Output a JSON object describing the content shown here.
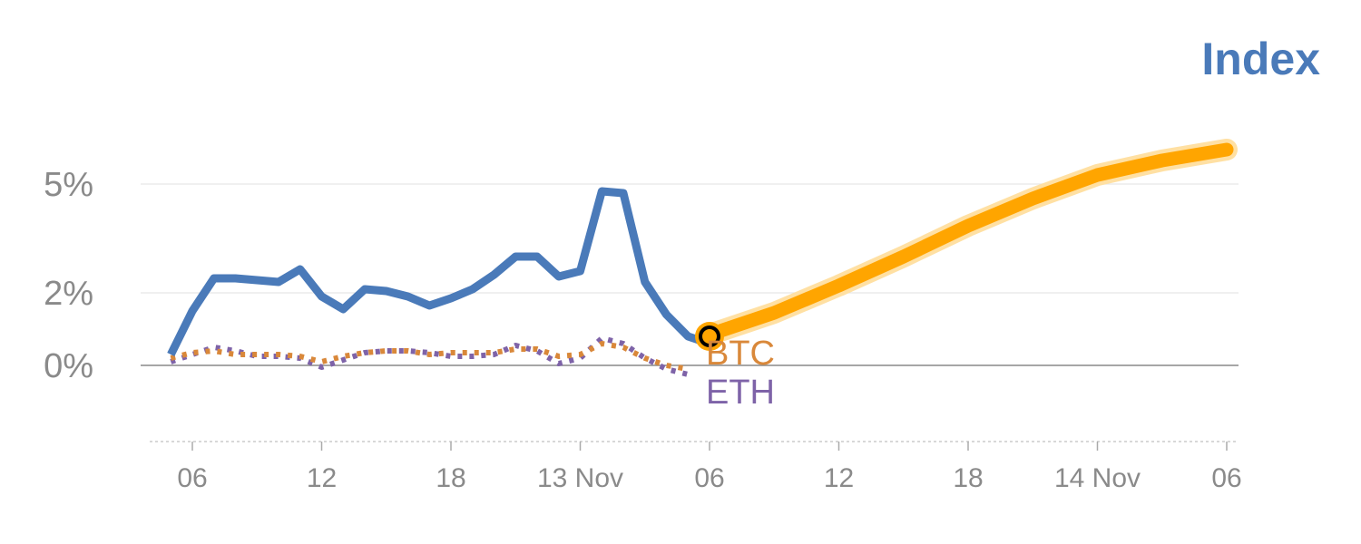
{
  "chart_data": {
    "type": "line",
    "title": "Index",
    "title_color": "#4a7ab9",
    "x_unit": "hours (ticks every 6h, day boundaries labeled)",
    "x_ticks": [
      {
        "x": 0,
        "label": "06"
      },
      {
        "x": 6,
        "label": "12"
      },
      {
        "x": 12,
        "label": "18"
      },
      {
        "x": 18,
        "label": "13 Nov"
      },
      {
        "x": 24,
        "label": "06"
      },
      {
        "x": 30,
        "label": "12"
      },
      {
        "x": 36,
        "label": "18"
      },
      {
        "x": 42,
        "label": "14 Nov"
      },
      {
        "x": 48,
        "label": "06"
      }
    ],
    "y_ticks": [
      {
        "y": 0,
        "label": "0%"
      },
      {
        "y": 2,
        "label": "2%"
      },
      {
        "y": 5,
        "label": "5%"
      }
    ],
    "ylim": [
      -1.8,
      6.5
    ],
    "xlim": [
      -2,
      49
    ],
    "series": [
      {
        "name": "Index",
        "color": "#4a7ab9",
        "style": "solid",
        "x": [
          -1,
          0,
          1,
          2,
          3,
          4,
          5,
          6,
          7,
          8,
          9,
          10,
          11,
          12,
          13,
          14,
          15,
          16,
          17,
          18,
          19,
          20,
          21,
          22,
          23,
          24
        ],
        "y": [
          0.3,
          1.5,
          2.4,
          2.4,
          2.35,
          2.3,
          2.65,
          1.9,
          1.55,
          2.1,
          2.05,
          1.9,
          1.65,
          1.85,
          2.1,
          2.5,
          3.0,
          3.0,
          2.45,
          2.6,
          4.8,
          4.75,
          2.3,
          1.4,
          0.8,
          0.6
        ]
      },
      {
        "name": "BTC",
        "color": "#d9883a",
        "style": "dotted",
        "x": [
          -1,
          0,
          1,
          2,
          3,
          4,
          5,
          6,
          7,
          8,
          9,
          10,
          11,
          12,
          13,
          14,
          15,
          16,
          17,
          18,
          19,
          20,
          21,
          22,
          23
        ],
        "y": [
          0.2,
          0.35,
          0.4,
          0.3,
          0.3,
          0.3,
          0.25,
          0.1,
          0.25,
          0.35,
          0.4,
          0.4,
          0.3,
          0.35,
          0.35,
          0.35,
          0.45,
          0.45,
          0.25,
          0.3,
          0.6,
          0.5,
          0.2,
          0.0,
          -0.1
        ]
      },
      {
        "name": "ETH",
        "color": "#7e63a8",
        "style": "dotted",
        "x": [
          -1,
          0,
          1,
          2,
          3,
          4,
          5,
          6,
          7,
          8,
          9,
          10,
          11,
          12,
          13,
          14,
          15,
          16,
          17,
          18,
          19,
          20,
          21,
          22,
          23
        ],
        "y": [
          0.1,
          0.3,
          0.5,
          0.4,
          0.25,
          0.25,
          0.2,
          -0.05,
          0.15,
          0.35,
          0.4,
          0.4,
          0.35,
          0.25,
          0.25,
          0.3,
          0.55,
          0.4,
          0.05,
          0.2,
          0.75,
          0.6,
          0.2,
          -0.1,
          -0.25
        ]
      },
      {
        "name": "forecast",
        "color": "#ffa500",
        "style": "thick",
        "x": [
          24,
          27,
          30,
          33,
          36,
          39,
          42,
          45,
          48
        ],
        "y": [
          0.85,
          1.45,
          2.2,
          3.0,
          3.85,
          4.6,
          5.25,
          5.65,
          5.95
        ]
      }
    ],
    "marker": {
      "x": 24,
      "y": 0.8,
      "fill": "#ffa500",
      "stroke": "#000000"
    },
    "annotations": [
      {
        "series": "BTC",
        "text": "BTC",
        "color": "#d9883a"
      },
      {
        "series": "ETH",
        "text": "ETH",
        "color": "#7e63a8"
      }
    ],
    "grid": true,
    "legend": "none"
  }
}
